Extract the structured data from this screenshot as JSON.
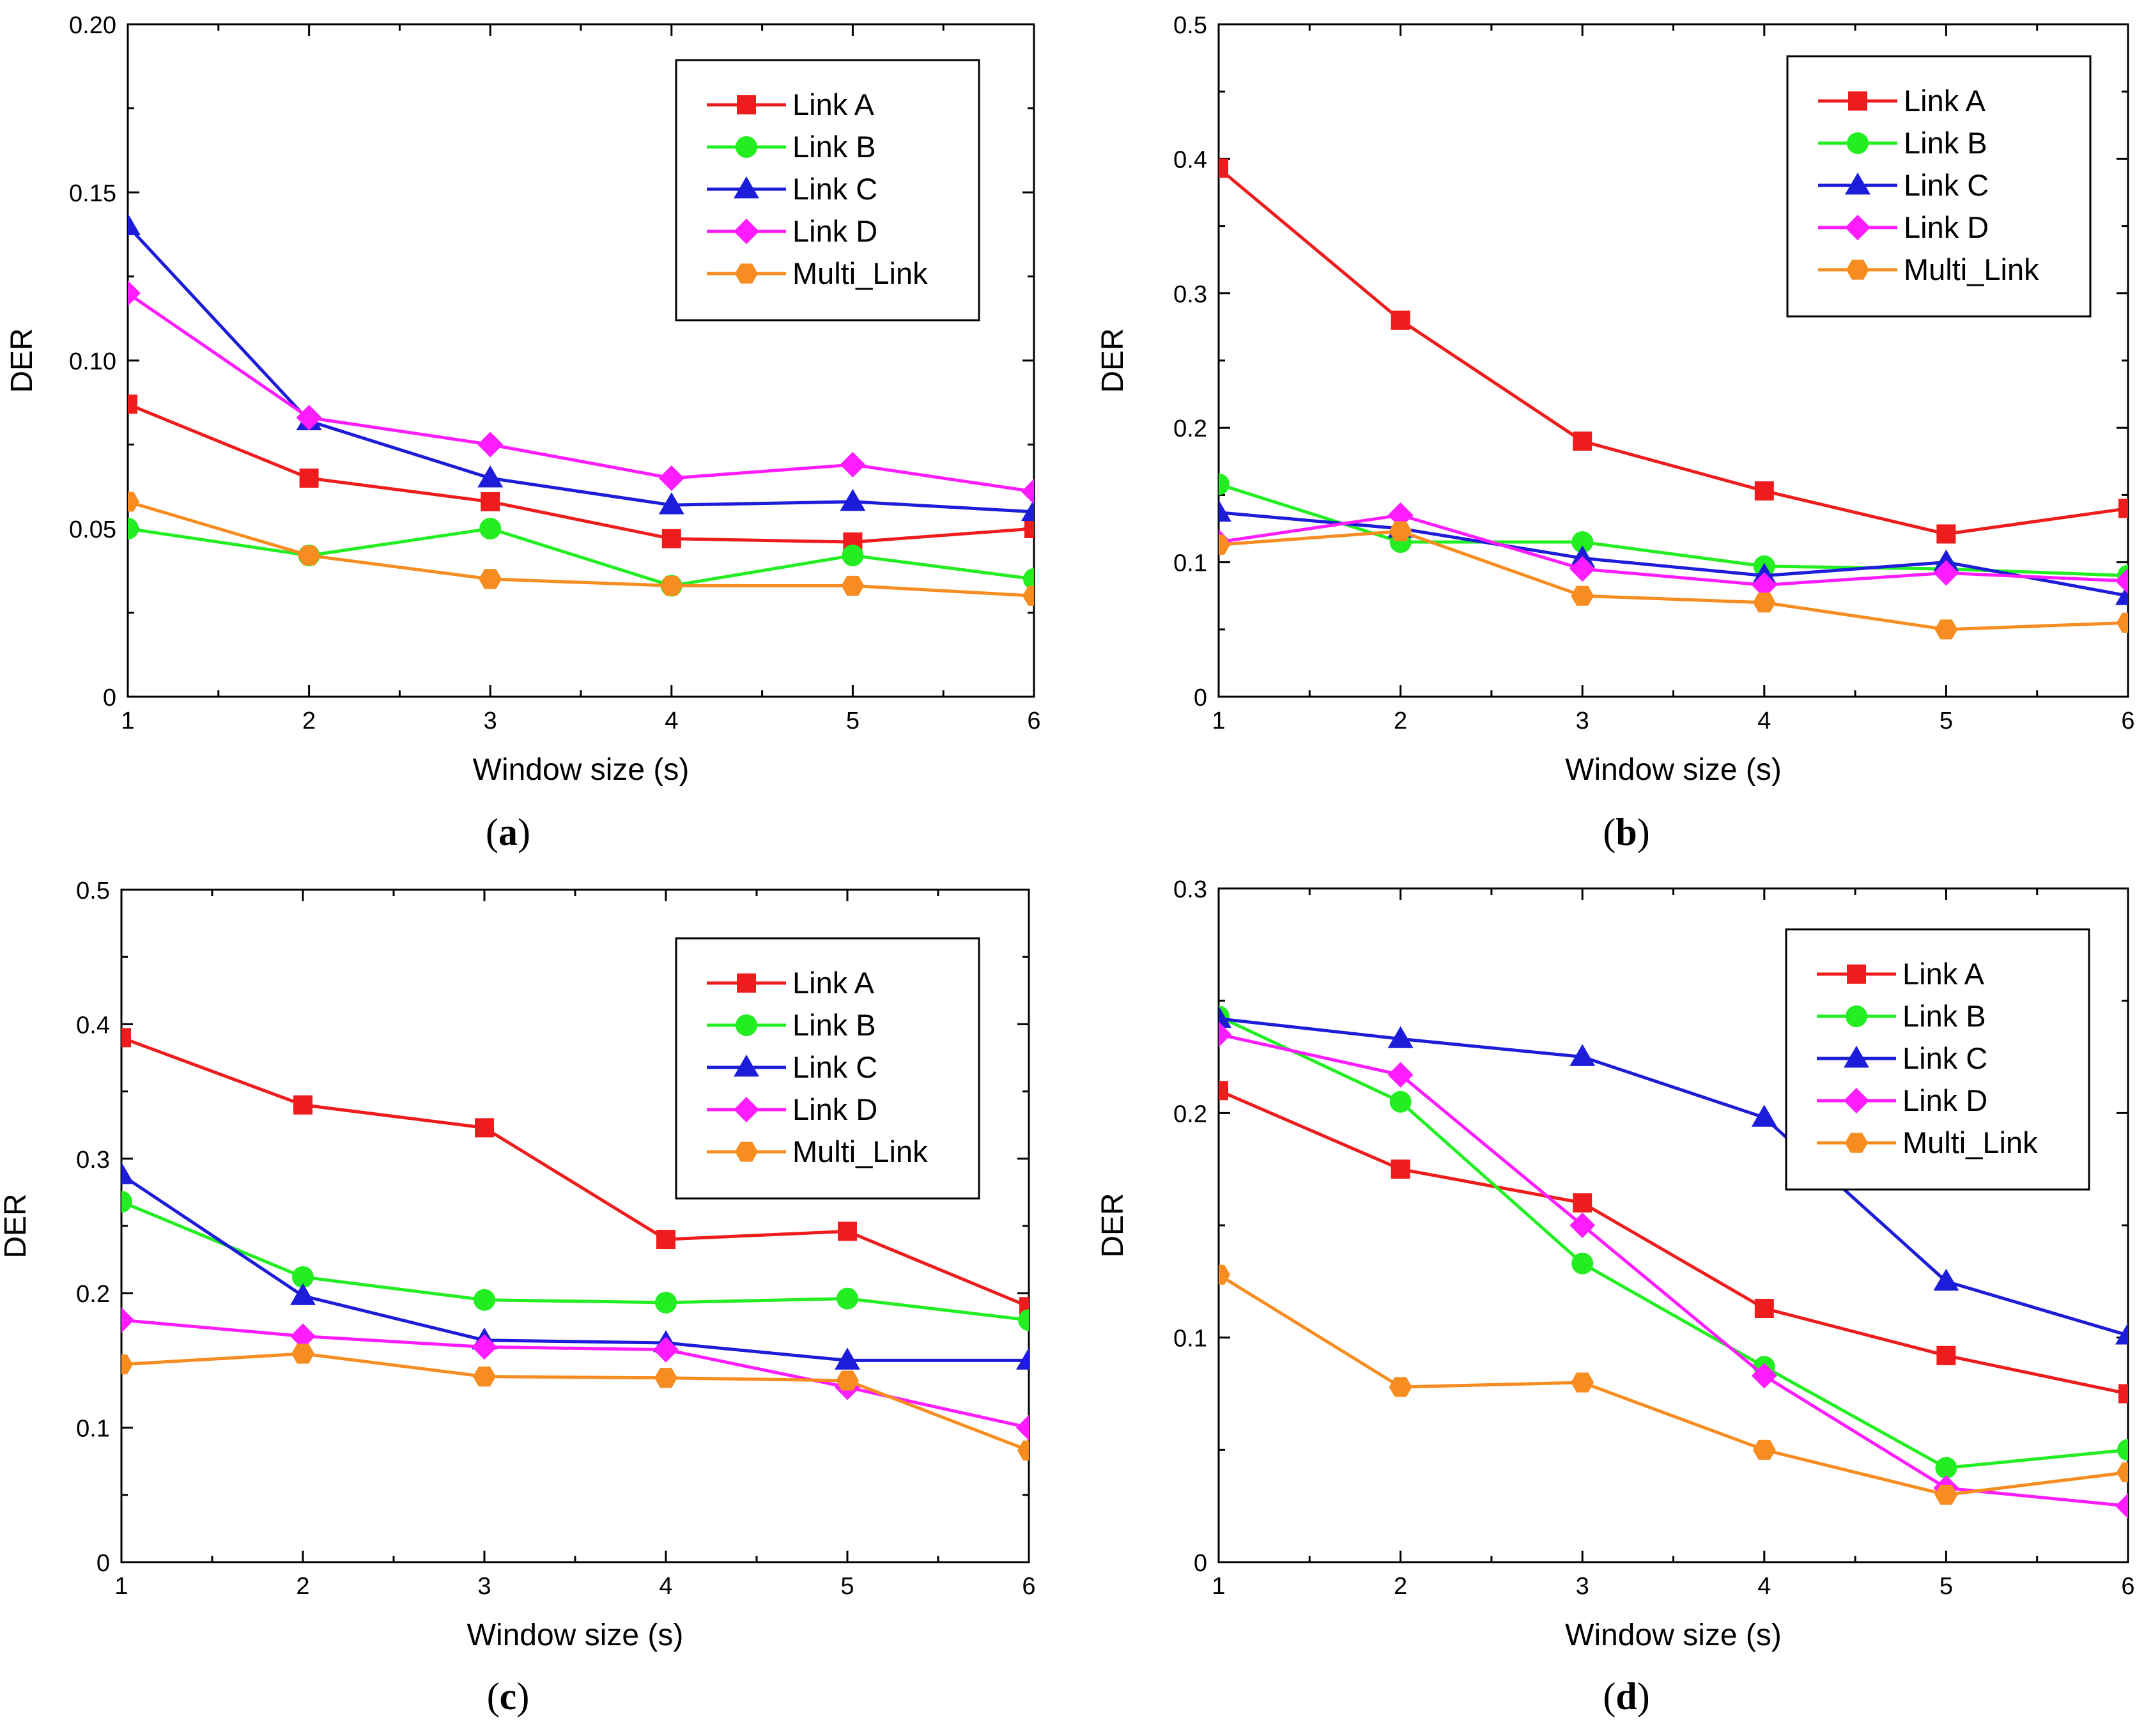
{
  "chart_data": [
    {
      "type": "line",
      "panel_label": "a",
      "xlabel": "Window size (s)",
      "ylabel": "DER",
      "xlim": [
        1,
        6
      ],
      "ylim": [
        0,
        0.2
      ],
      "x_ticks": [
        "1",
        "2",
        "3",
        "4",
        "5",
        "6"
      ],
      "y_ticks": [
        "0",
        "0.05",
        "0.10",
        "0.15",
        "0.20"
      ],
      "y_tick_values": [
        0,
        0.05,
        0.1,
        0.15,
        0.2
      ],
      "legend_position": "top-right",
      "grid": false,
      "x": [
        1,
        2,
        3,
        4,
        5,
        6
      ],
      "series": [
        {
          "name": "Link A",
          "color": "#ee1c1c",
          "marker": "square",
          "values": [
            0.087,
            0.065,
            0.058,
            0.047,
            0.046,
            0.05
          ]
        },
        {
          "name": "Link B",
          "color": "#22ee22",
          "marker": "circle",
          "values": [
            0.05,
            0.042,
            0.05,
            0.033,
            0.042,
            0.035
          ]
        },
        {
          "name": "Link C",
          "color": "#1c1cd9",
          "marker": "triangle",
          "values": [
            0.14,
            0.082,
            0.065,
            0.057,
            0.058,
            0.055
          ]
        },
        {
          "name": "Link D",
          "color": "#ff1cff",
          "marker": "diamond",
          "values": [
            0.12,
            0.083,
            0.075,
            0.065,
            0.069,
            0.061
          ]
        },
        {
          "name": "Multi_Link",
          "color": "#f78c20",
          "marker": "hexagon",
          "values": [
            0.058,
            0.042,
            0.035,
            0.033,
            0.033,
            0.03
          ]
        }
      ]
    },
    {
      "type": "line",
      "panel_label": "b",
      "xlabel": "Window size (s)",
      "ylabel": "DER",
      "xlim": [
        1,
        6
      ],
      "ylim": [
        0,
        0.5
      ],
      "x_ticks": [
        "1",
        "2",
        "3",
        "4",
        "5",
        "6"
      ],
      "y_ticks": [
        "0",
        "0.1",
        "0.2",
        "0.3",
        "0.4",
        "0.5"
      ],
      "y_tick_values": [
        0,
        0.1,
        0.2,
        0.3,
        0.4,
        0.5
      ],
      "legend_position": "top-right",
      "grid": false,
      "x": [
        1,
        2,
        3,
        4,
        5,
        6
      ],
      "series": [
        {
          "name": "Link A",
          "color": "#ee1c1c",
          "marker": "square",
          "values": [
            0.393,
            0.28,
            0.19,
            0.153,
            0.121,
            0.14
          ]
        },
        {
          "name": "Link B",
          "color": "#22ee22",
          "marker": "circle",
          "values": [
            0.158,
            0.115,
            0.115,
            0.097,
            0.095,
            0.09
          ]
        },
        {
          "name": "Link C",
          "color": "#1c1cd9",
          "marker": "triangle",
          "values": [
            0.137,
            0.125,
            0.103,
            0.09,
            0.1,
            0.075
          ]
        },
        {
          "name": "Link D",
          "color": "#ff1cff",
          "marker": "diamond",
          "values": [
            0.115,
            0.135,
            0.095,
            0.083,
            0.092,
            0.086
          ]
        },
        {
          "name": "Multi_Link",
          "color": "#f78c20",
          "marker": "hexagon",
          "values": [
            0.113,
            0.123,
            0.075,
            0.07,
            0.05,
            0.055
          ]
        }
      ]
    },
    {
      "type": "line",
      "panel_label": "c",
      "xlabel": "Window size (s)",
      "ylabel": "DER",
      "xlim": [
        1,
        6
      ],
      "ylim": [
        0,
        0.5
      ],
      "x_ticks": [
        "1",
        "2",
        "3",
        "4",
        "5",
        "6"
      ],
      "y_ticks": [
        "0",
        "0.1",
        "0.2",
        "0.3",
        "0.4",
        "0.5"
      ],
      "y_tick_values": [
        0,
        0.1,
        0.2,
        0.3,
        0.4,
        0.5
      ],
      "legend_position": "top-right",
      "grid": false,
      "x": [
        1,
        2,
        3,
        4,
        5,
        6
      ],
      "series": [
        {
          "name": "Link A",
          "color": "#ee1c1c",
          "marker": "square",
          "values": [
            0.39,
            0.34,
            0.323,
            0.24,
            0.246,
            0.19
          ]
        },
        {
          "name": "Link B",
          "color": "#22ee22",
          "marker": "circle",
          "values": [
            0.268,
            0.212,
            0.195,
            0.193,
            0.196,
            0.18
          ]
        },
        {
          "name": "Link C",
          "color": "#1c1cd9",
          "marker": "triangle",
          "values": [
            0.288,
            0.198,
            0.165,
            0.163,
            0.15,
            0.15
          ]
        },
        {
          "name": "Link D",
          "color": "#ff1cff",
          "marker": "diamond",
          "values": [
            0.18,
            0.168,
            0.16,
            0.158,
            0.13,
            0.1
          ]
        },
        {
          "name": "Multi_Link",
          "color": "#f78c20",
          "marker": "hexagon",
          "values": [
            0.147,
            0.155,
            0.138,
            0.137,
            0.135,
            0.083
          ]
        }
      ]
    },
    {
      "type": "line",
      "panel_label": "d",
      "xlabel": "Window size (s)",
      "ylabel": "DER",
      "xlim": [
        1,
        6
      ],
      "ylim": [
        0,
        0.3
      ],
      "x_ticks": [
        "1",
        "2",
        "3",
        "4",
        "5",
        "6"
      ],
      "y_ticks": [
        "0",
        "0.1",
        "0.2",
        "0.3"
      ],
      "y_tick_values": [
        0,
        0.1,
        0.2,
        0.3
      ],
      "legend_position": "top-right",
      "grid": false,
      "x": [
        1,
        2,
        3,
        4,
        5,
        6
      ],
      "series": [
        {
          "name": "Link A",
          "color": "#ee1c1c",
          "marker": "square",
          "values": [
            0.21,
            0.175,
            0.16,
            0.113,
            0.092,
            0.075
          ]
        },
        {
          "name": "Link B",
          "color": "#22ee22",
          "marker": "circle",
          "values": [
            0.243,
            0.205,
            0.133,
            0.087,
            0.042,
            0.05
          ]
        },
        {
          "name": "Link C",
          "color": "#1c1cd9",
          "marker": "triangle",
          "values": [
            0.242,
            0.233,
            0.225,
            0.198,
            0.125,
            0.101
          ]
        },
        {
          "name": "Link D",
          "color": "#ff1cff",
          "marker": "diamond",
          "values": [
            0.235,
            0.217,
            0.15,
            0.083,
            0.033,
            0.025
          ]
        },
        {
          "name": "Multi_Link",
          "color": "#f78c20",
          "marker": "hexagon",
          "values": [
            0.128,
            0.078,
            0.08,
            0.05,
            0.03,
            0.04
          ]
        }
      ]
    }
  ]
}
